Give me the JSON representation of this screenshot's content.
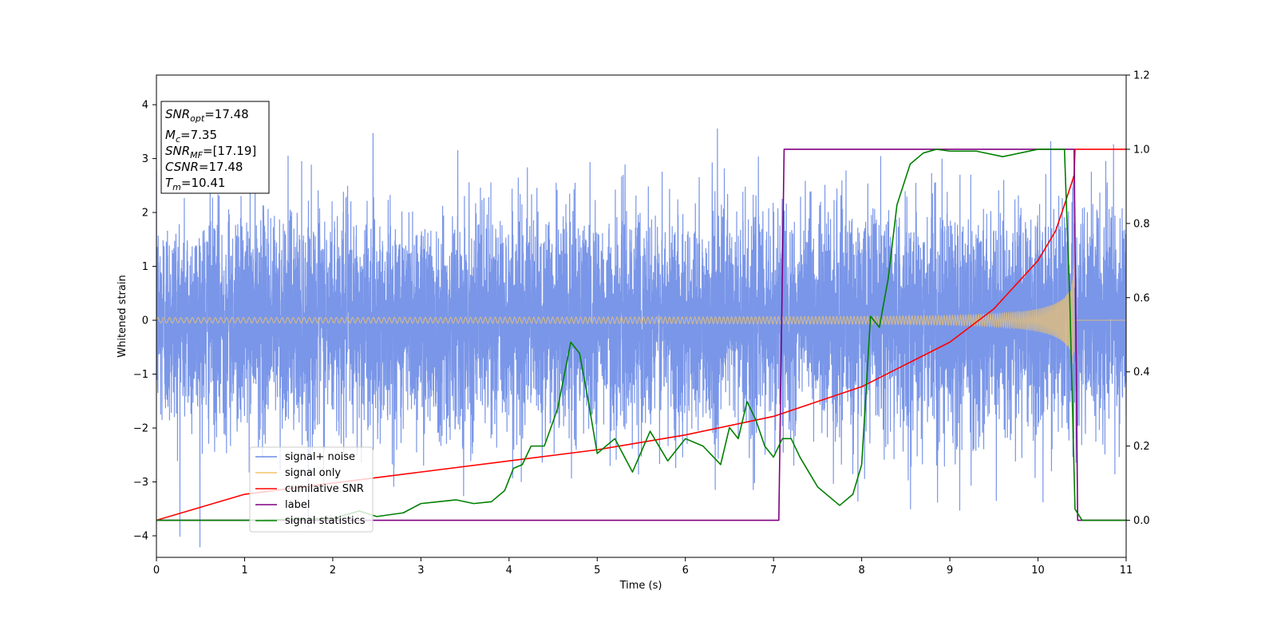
{
  "chart_data": {
    "type": "line",
    "xlabel": "Time (s)",
    "ylabel": "Whitened strain",
    "xlim": [
      0,
      11
    ],
    "ylim_left": [
      -4.4,
      4.55
    ],
    "ylim_right": [
      -0.1,
      1.2
    ],
    "x_ticks": [
      0,
      1,
      2,
      3,
      4,
      5,
      6,
      7,
      8,
      9,
      10,
      11
    ],
    "y_ticks_left": [
      -4,
      -3,
      -2,
      -1,
      0,
      1,
      2,
      3,
      4
    ],
    "y_ticks_right": [
      "0.0",
      "0.2",
      "0.4",
      "0.6",
      "0.8",
      "1.0",
      "1.2"
    ],
    "grid": false,
    "legend_position": "lower-left",
    "series": [
      {
        "name": "signal+ noise",
        "axis": "left",
        "color": "#6b8be6",
        "noise_sigma": 1.0,
        "x_range": [
          0,
          11
        ]
      },
      {
        "name": "signal only",
        "axis": "left",
        "color": "#f2c46b",
        "chirp_start_amplitude": 0.05,
        "chirp_peak_amplitude": 1.7,
        "chirp_merger_time": 10.41
      },
      {
        "name": "cumilative SNR",
        "axis": "right",
        "color": "#ff0000",
        "x": [
          0,
          1,
          2,
          3,
          4,
          5,
          6,
          7,
          8,
          9,
          9.5,
          10,
          10.2,
          10.3,
          10.41,
          10.42,
          11
        ],
        "y": [
          0.0,
          0.07,
          0.1,
          0.13,
          0.16,
          0.19,
          0.23,
          0.28,
          0.36,
          0.48,
          0.57,
          0.7,
          0.78,
          0.85,
          0.93,
          1.0,
          1.0
        ]
      },
      {
        "name": "label",
        "axis": "right",
        "color": "#800080",
        "x": [
          0,
          7.06,
          7.12,
          10.41,
          10.45,
          11
        ],
        "y": [
          0,
          0,
          1,
          1,
          0,
          0
        ]
      },
      {
        "name": "signal statistics",
        "axis": "right",
        "color": "#008000",
        "x": [
          0,
          1,
          2,
          2.3,
          2.5,
          2.8,
          3.0,
          3.2,
          3.4,
          3.6,
          3.8,
          3.95,
          4.05,
          4.15,
          4.25,
          4.4,
          4.55,
          4.7,
          4.8,
          4.9,
          5.0,
          5.2,
          5.4,
          5.6,
          5.8,
          6.0,
          6.2,
          6.4,
          6.5,
          6.6,
          6.7,
          6.8,
          6.9,
          7.0,
          7.1,
          7.2,
          7.3,
          7.5,
          7.75,
          7.9,
          8.0,
          8.1,
          8.2,
          8.3,
          8.4,
          8.55,
          8.7,
          8.85,
          9.0,
          9.3,
          9.6,
          9.8,
          10.0,
          10.3,
          10.36,
          10.42,
          10.5,
          11
        ],
        "y": [
          0,
          0,
          0.005,
          0.025,
          0.01,
          0.02,
          0.045,
          0.05,
          0.055,
          0.045,
          0.05,
          0.08,
          0.14,
          0.15,
          0.2,
          0.2,
          0.3,
          0.48,
          0.45,
          0.32,
          0.18,
          0.22,
          0.13,
          0.24,
          0.16,
          0.22,
          0.2,
          0.15,
          0.25,
          0.22,
          0.32,
          0.27,
          0.2,
          0.17,
          0.22,
          0.22,
          0.17,
          0.09,
          0.04,
          0.07,
          0.15,
          0.55,
          0.52,
          0.65,
          0.85,
          0.96,
          0.99,
          1.0,
          0.995,
          0.995,
          0.98,
          0.99,
          1.0,
          1.0,
          0.6,
          0.03,
          0.0,
          0.0
        ]
      }
    ],
    "annotations": {
      "snr_opt": "=17.48",
      "mc": "=7.35",
      "snr_mf": "=[17.19]",
      "csnr": "=17.48",
      "tm": "=10.41"
    }
  }
}
